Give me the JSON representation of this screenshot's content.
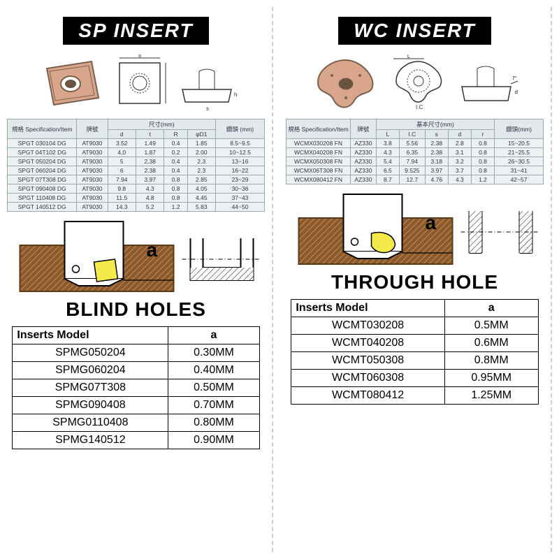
{
  "left": {
    "title": "SP INSERT",
    "section_label": "BLIND HOLES",
    "spec": {
      "header_spec": "規格\nSpecification/Item",
      "header_brand": "牌號",
      "header_dims": "尺寸(mm)",
      "header_drill": "鑽頭 (mm)",
      "cols": [
        "d",
        "t",
        "R",
        "φD1"
      ],
      "rows": [
        [
          "SPGT 030104 DG",
          "AT9030",
          "3.52",
          "1.49",
          "0.4",
          "1.85",
          "8.5~9.5"
        ],
        [
          "SPGT 04T102 DG",
          "AT9030",
          "4.0",
          "1.87",
          "0.2",
          "2.00",
          "10~12.5"
        ],
        [
          "SPGT 050204 DG",
          "AT9030",
          "5",
          "2.38",
          "0.4",
          "2.3",
          "13~16"
        ],
        [
          "SPGT 060204 DG",
          "AT9030",
          "6",
          "2.38",
          "0.4",
          "2.3",
          "16~22"
        ],
        [
          "SPGT 07T308 DG",
          "AT9030",
          "7.94",
          "3.97",
          "0.8",
          "2.85",
          "23~29"
        ],
        [
          "SPGT 090408 DG",
          "AT9030",
          "9.8",
          "4.3",
          "0.8",
          "4.05",
          "30~36"
        ],
        [
          "SPGT 110408 DG",
          "AT9030",
          "11.5",
          "4.8",
          "0.8",
          "4.45",
          "37~43"
        ],
        [
          "SPGT 140512 DG",
          "AT9030",
          "14.3",
          "5.2",
          "1.2",
          "5.83",
          "44~50"
        ]
      ]
    },
    "inserts": {
      "h1": "Inserts Model",
      "h2": "a",
      "rows": [
        [
          "SPMG050204",
          "0.30MM"
        ],
        [
          "SPMG060204",
          "0.40MM"
        ],
        [
          "SPMG07T308",
          "0.50MM"
        ],
        [
          "SPMG090408",
          "0.70MM"
        ],
        [
          "SPMG0110408",
          "0.80MM"
        ],
        [
          "SPMG140512",
          "0.90MM"
        ]
      ]
    },
    "a_label": "a"
  },
  "right": {
    "title": "WC INSERT",
    "section_label": "THROUGH HOLE",
    "spec": {
      "header_spec": "規格\nSpecification/Item",
      "header_brand": "牌號",
      "header_dims": "基本尺寸(mm)",
      "header_drill": "鑽頭(mm)",
      "cols": [
        "L",
        "I.C",
        "s",
        "d",
        "r"
      ],
      "rows": [
        [
          "WCMX030208 FN",
          "AZ330",
          "3.8",
          "5.56",
          "2.38",
          "2.8",
          "0.8",
          "15~20.5"
        ],
        [
          "WCMX040208 FN",
          "AZ330",
          "4.3",
          "6.35",
          "2.38",
          "3.1",
          "0.8",
          "21~25.5"
        ],
        [
          "WCMX050308 FN",
          "AZ330",
          "5.4",
          "7.94",
          "3.18",
          "3.2",
          "0.8",
          "26~30.5"
        ],
        [
          "WCMX06T308 FN",
          "AZ330",
          "6.5",
          "9.525",
          "3.97",
          "3.7",
          "0.8",
          "31~41"
        ],
        [
          "WCMX080412 FN",
          "AZ330",
          "8.7",
          "12.7",
          "4.76",
          "4.3",
          "1.2",
          "42~57"
        ]
      ]
    },
    "inserts": {
      "h1": "Inserts Model",
      "h2": "a",
      "rows": [
        [
          "WCMT030208",
          "0.5MM"
        ],
        [
          "WCMT040208",
          "0.6MM"
        ],
        [
          "WCMT050308",
          "0.8MM"
        ],
        [
          "WCMT060308",
          "0.95MM"
        ],
        [
          "WCMT080412",
          "1.25MM"
        ]
      ]
    },
    "a_label": "a"
  },
  "style": {
    "insert_color": "#d9a68c",
    "insert_stroke": "#7a604f",
    "brown": "#8a5a2e",
    "hatch": "#c88b4e",
    "yellow": "#f6e94a",
    "steel": "#ffffff",
    "line": "#1b1b1b"
  }
}
